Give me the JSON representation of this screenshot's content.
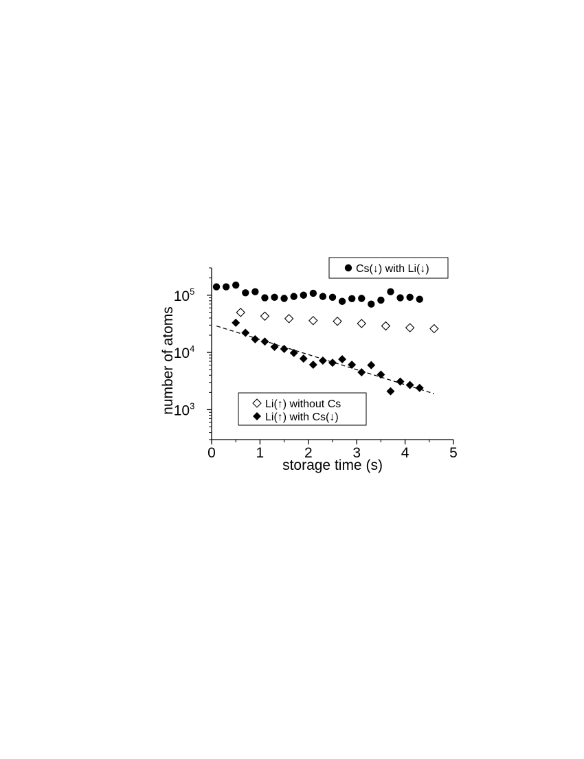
{
  "chart_data": {
    "type": "scatter",
    "title": "",
    "xlabel": "storage time (s)",
    "ylabel": "number of atoms",
    "xlim": [
      0,
      5
    ],
    "ylim": [
      300,
      300000
    ],
    "yscale": "log",
    "x_ticks": [
      "0",
      "1",
      "2",
      "3",
      "4",
      "5"
    ],
    "y_ticks": [
      {
        "base": "10",
        "exp": "3",
        "value": 1000
      },
      {
        "base": "10",
        "exp": "4",
        "value": 10000
      },
      {
        "base": "10",
        "exp": "5",
        "value": 100000
      }
    ],
    "grid": false,
    "series": [
      {
        "name": "Cs(↓) with Li(↓)",
        "marker": "filled-circle",
        "color": "#000000",
        "points": [
          [
            0.1,
            140000
          ],
          [
            0.3,
            140000
          ],
          [
            0.5,
            150000
          ],
          [
            0.7,
            110000
          ],
          [
            0.9,
            115000
          ],
          [
            1.1,
            90000
          ],
          [
            1.3,
            92000
          ],
          [
            1.5,
            88000
          ],
          [
            1.7,
            95000
          ],
          [
            1.9,
            100000
          ],
          [
            2.1,
            108000
          ],
          [
            2.3,
            95000
          ],
          [
            2.5,
            92000
          ],
          [
            2.7,
            78000
          ],
          [
            2.9,
            87000
          ],
          [
            3.1,
            88000
          ],
          [
            3.3,
            70000
          ],
          [
            3.5,
            82000
          ],
          [
            3.7,
            115000
          ],
          [
            3.9,
            90000
          ],
          [
            4.1,
            92000
          ],
          [
            4.3,
            85000
          ]
        ]
      },
      {
        "name": "Li(↑) without Cs",
        "marker": "open-diamond",
        "color": "#000000",
        "points": [
          [
            0.6,
            50000
          ],
          [
            1.1,
            43000
          ],
          [
            1.6,
            39000
          ],
          [
            2.1,
            36000
          ],
          [
            2.6,
            35000
          ],
          [
            3.1,
            32000
          ],
          [
            3.6,
            29000
          ],
          [
            4.1,
            27000
          ],
          [
            4.6,
            26000
          ]
        ]
      },
      {
        "name": "Li(↑) with Cs(↓)",
        "marker": "filled-diamond",
        "color": "#000000",
        "points": [
          [
            0.5,
            33000
          ],
          [
            0.7,
            22000
          ],
          [
            0.9,
            17000
          ],
          [
            1.1,
            15500
          ],
          [
            1.3,
            12500
          ],
          [
            1.5,
            11500
          ],
          [
            1.7,
            9800
          ],
          [
            1.9,
            7800
          ],
          [
            2.1,
            6100
          ],
          [
            2.3,
            7200
          ],
          [
            2.5,
            6600
          ],
          [
            2.7,
            7600
          ],
          [
            2.9,
            6100
          ],
          [
            3.1,
            4500
          ],
          [
            3.3,
            6000
          ],
          [
            3.5,
            4100
          ],
          [
            3.7,
            2100
          ],
          [
            3.9,
            3100
          ],
          [
            4.1,
            2700
          ],
          [
            4.3,
            2400
          ]
        ]
      }
    ],
    "fit_line": {
      "style": "dashed",
      "color": "#000000",
      "points": [
        [
          0.1,
          29000
        ],
        [
          4.6,
          1900
        ]
      ]
    },
    "legends": [
      {
        "position": "top-right",
        "entries": [
          0
        ]
      },
      {
        "position": "bottom-center",
        "entries": [
          1,
          2
        ]
      }
    ]
  }
}
